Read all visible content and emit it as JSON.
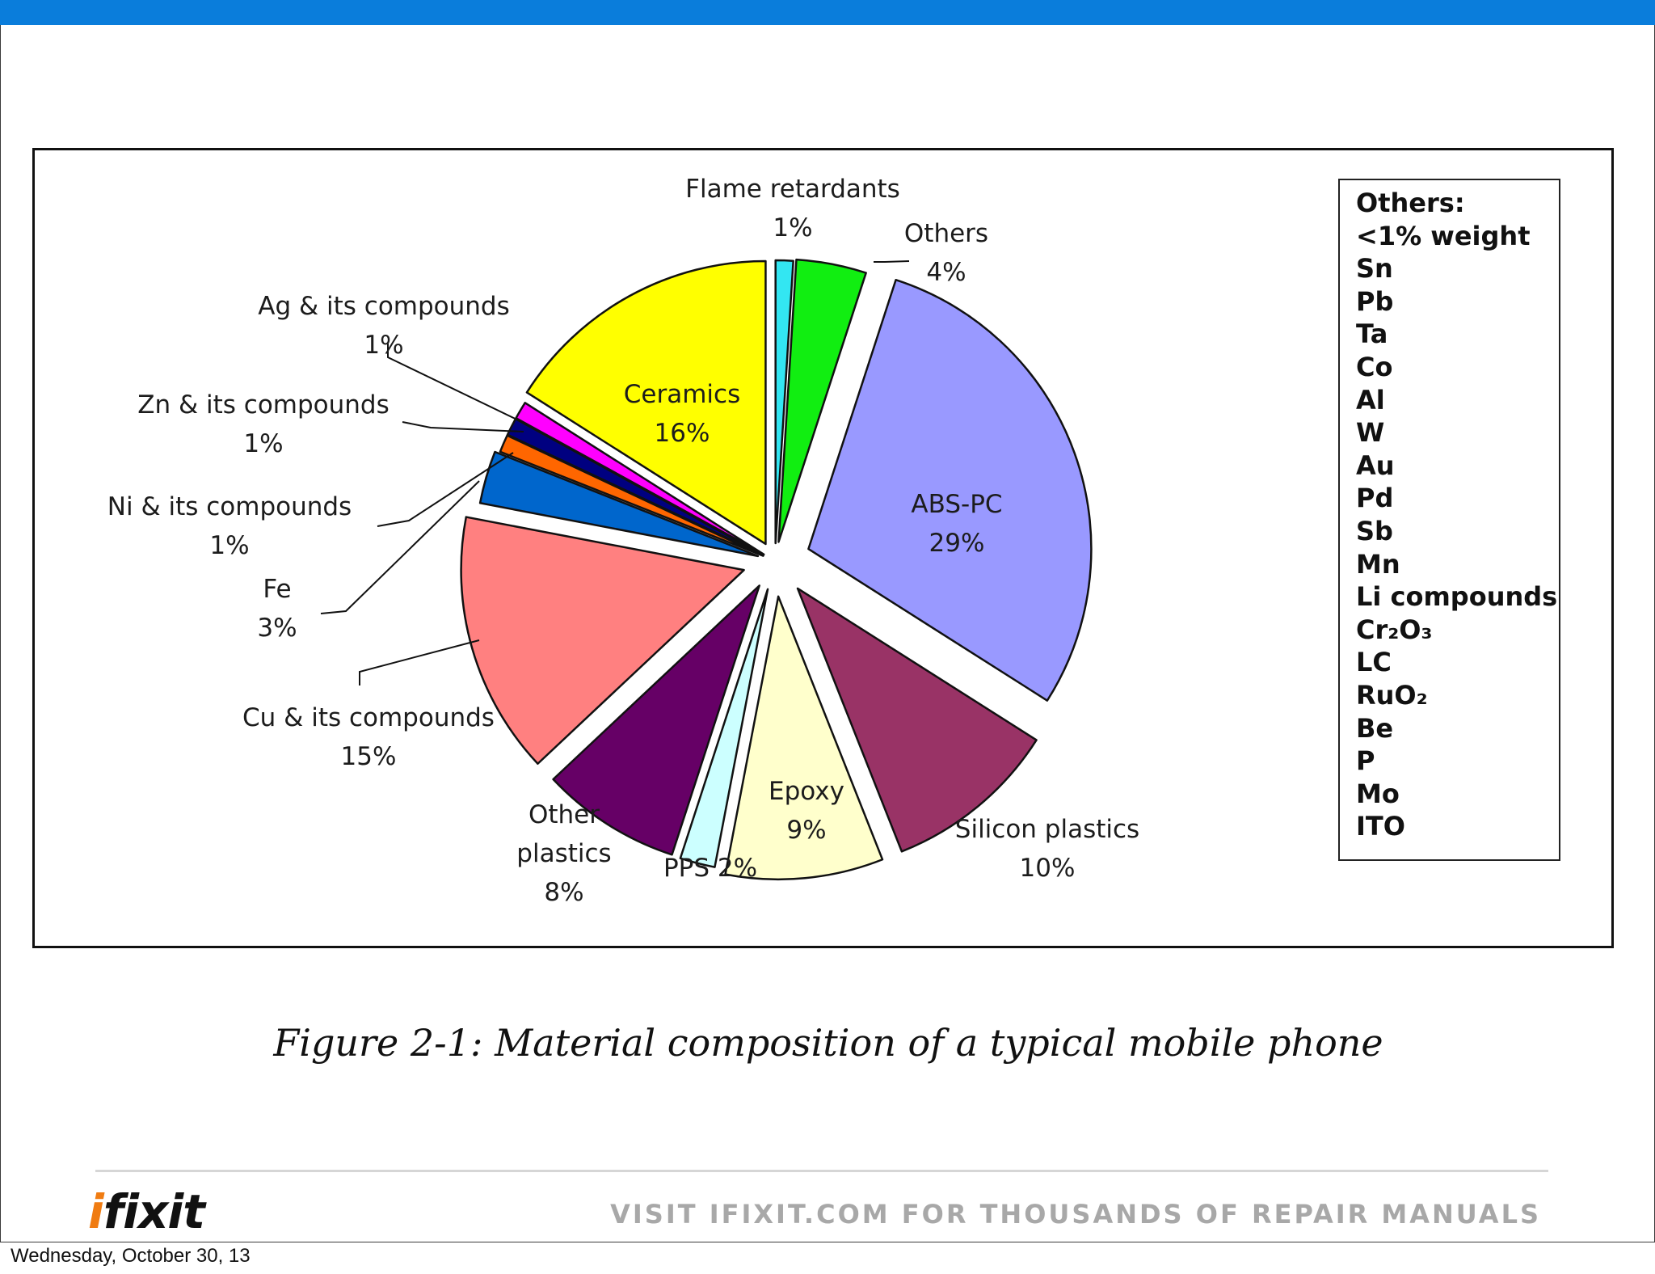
{
  "caption": "Figure 2-1: Material composition of a typical mobile phone",
  "footer": {
    "logo_prefix": "i",
    "logo_rest": "fixit",
    "tagline": "VISIT IFIXIT.COM FOR THOUSANDS OF REPAIR MANUALS"
  },
  "date": "Wednesday, October 30, 13",
  "others_box": {
    "title": "Others:",
    "subtitle": "<1% weight",
    "items": [
      "Sn",
      "Pb",
      "Ta",
      "Co",
      "Al",
      "W",
      "Au",
      "Pd",
      "Sb",
      "Mn",
      "Li compounds",
      "Cr₂O₃",
      "LC",
      "RuO₂",
      "Be",
      "P",
      "Mo",
      "ITO"
    ]
  },
  "chart_data": {
    "type": "pie",
    "title": "",
    "slices": [
      {
        "label": "Flame retardants",
        "value": 1,
        "value_label": "1%",
        "color": "#33e6f2"
      },
      {
        "label": "Others",
        "value": 4,
        "value_label": "4%",
        "color": "#11ee11"
      },
      {
        "label": "ABS-PC",
        "value": 29,
        "value_label": "29%",
        "color": "#9999ff"
      },
      {
        "label": "Silicon plastics",
        "value": 10,
        "value_label": "10%",
        "color": "#993366"
      },
      {
        "label": "Epoxy",
        "value": 9,
        "value_label": "9%",
        "color": "#ffffcc"
      },
      {
        "label": "PPS",
        "value": 2,
        "value_label": "2%",
        "color": "#ccffff"
      },
      {
        "label": "Other plastics",
        "value": 8,
        "value_label": "8%",
        "color": "#660066"
      },
      {
        "label": "Cu & its compounds",
        "value": 15,
        "value_label": "15%",
        "color": "#ff8080"
      },
      {
        "label": "Fe",
        "value": 3,
        "value_label": "3%",
        "color": "#0066cc"
      },
      {
        "label": "Ni & its compounds",
        "value": 1,
        "value_label": "1%",
        "color": "#ff6600"
      },
      {
        "label": "Zn & its compounds",
        "value": 1,
        "value_label": "1%",
        "color": "#000080"
      },
      {
        "label": "Ag & its compounds",
        "value": 1,
        "value_label": "1%",
        "color": "#ff00ff"
      },
      {
        "label": "Ceramics",
        "value": 16,
        "value_label": "16%",
        "color": "#ffff00"
      }
    ]
  }
}
